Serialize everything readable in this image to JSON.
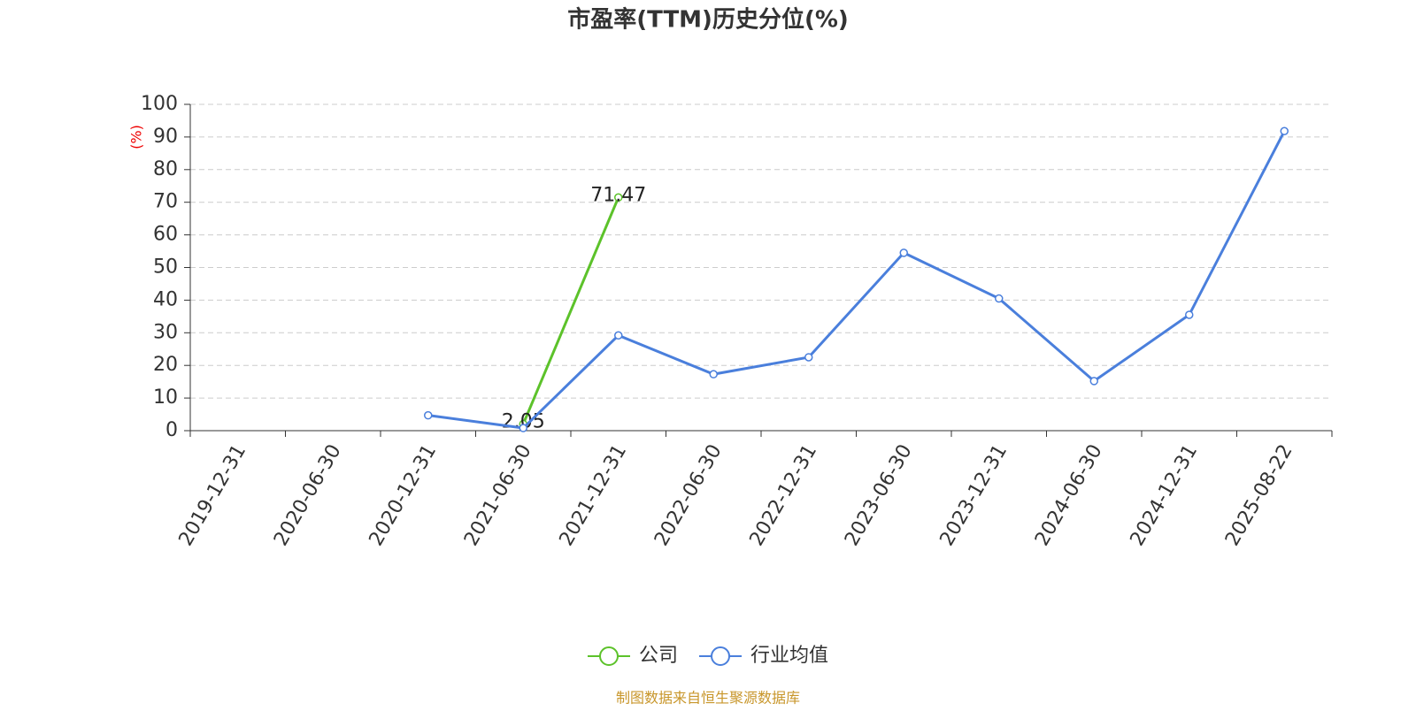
{
  "chart_data": {
    "type": "line",
    "title": "市盈率(TTM)历史分位(%)",
    "y_label": "(%)",
    "categories": [
      "2019-12-31",
      "2020-06-30",
      "2020-12-31",
      "2021-06-30",
      "2021-12-31",
      "2022-06-30",
      "2022-12-31",
      "2023-06-30",
      "2023-12-31",
      "2024-06-30",
      "2024-12-31",
      "2025-08-22"
    ],
    "series": [
      {
        "name": "公司",
        "color": "#5cc22a",
        "values": [
          null,
          null,
          null,
          2.05,
          71.47,
          null,
          null,
          null,
          null,
          null,
          null,
          null
        ],
        "data_labels": true
      },
      {
        "name": "行业均值",
        "color": "#4a7fdc",
        "values": [
          null,
          null,
          4.7,
          0.8,
          29.2,
          17.3,
          22.5,
          54.5,
          40.5,
          15.2,
          35.5,
          91.8
        ],
        "data_labels": false
      }
    ],
    "ylim": [
      0,
      100
    ],
    "yticks": [
      0,
      10,
      20,
      30,
      40,
      50,
      60,
      70,
      80,
      90,
      100
    ],
    "grid": true,
    "legend": "bottom",
    "source": "制图数据来自恒生聚源数据库"
  }
}
